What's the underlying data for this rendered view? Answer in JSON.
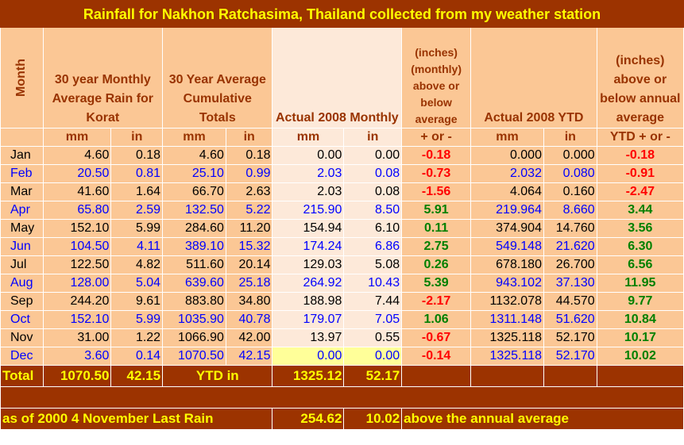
{
  "title": "Rainfall for Nakhon Ratchasima, Thailand collected from my weather station",
  "headers": {
    "month": "Month",
    "avg_monthly": "30 year Monthly Average Rain for Korat",
    "avg_cumulative": "30 Year Average Cumulative Totals",
    "actual_monthly": "Actual 2008 Monthly",
    "monthly_diff": "(inches) (monthly) above or below average",
    "actual_ytd": "Actual 2008 YTD",
    "ytd_diff": "(inches) above or below annual average"
  },
  "units": {
    "mm": "mm",
    "in": "in",
    "plus_minus": "+ or -",
    "ytd_plus_minus": "YTD + or -"
  },
  "rows": [
    {
      "month": "Jan",
      "avg_mm": "4.60",
      "avg_in": "0.18",
      "cum_mm": "4.60",
      "cum_in": "0.18",
      "act_mm": "0.00",
      "act_in": "0.00",
      "diff": "-0.18",
      "ytd_mm": "0.000",
      "ytd_in": "0.000",
      "ytd_diff": "-0.18"
    },
    {
      "month": "Feb",
      "avg_mm": "20.50",
      "avg_in": "0.81",
      "cum_mm": "25.10",
      "cum_in": "0.99",
      "act_mm": "2.03",
      "act_in": "0.08",
      "diff": "-0.73",
      "ytd_mm": "2.032",
      "ytd_in": "0.080",
      "ytd_diff": "-0.91"
    },
    {
      "month": "Mar",
      "avg_mm": "41.60",
      "avg_in": "1.64",
      "cum_mm": "66.70",
      "cum_in": "2.63",
      "act_mm": "2.03",
      "act_in": "0.08",
      "diff": "-1.56",
      "ytd_mm": "4.064",
      "ytd_in": "0.160",
      "ytd_diff": "-2.47"
    },
    {
      "month": "Apr",
      "avg_mm": "65.80",
      "avg_in": "2.59",
      "cum_mm": "132.50",
      "cum_in": "5.22",
      "act_mm": "215.90",
      "act_in": "8.50",
      "diff": "5.91",
      "ytd_mm": "219.964",
      "ytd_in": "8.660",
      "ytd_diff": "3.44"
    },
    {
      "month": "May",
      "avg_mm": "152.10",
      "avg_in": "5.99",
      "cum_mm": "284.60",
      "cum_in": "11.20",
      "act_mm": "154.94",
      "act_in": "6.10",
      "diff": "0.11",
      "ytd_mm": "374.904",
      "ytd_in": "14.760",
      "ytd_diff": "3.56"
    },
    {
      "month": "Jun",
      "avg_mm": "104.50",
      "avg_in": "4.11",
      "cum_mm": "389.10",
      "cum_in": "15.32",
      "act_mm": "174.24",
      "act_in": "6.86",
      "diff": "2.75",
      "ytd_mm": "549.148",
      "ytd_in": "21.620",
      "ytd_diff": "6.30"
    },
    {
      "month": "Jul",
      "avg_mm": "122.50",
      "avg_in": "4.82",
      "cum_mm": "511.60",
      "cum_in": "20.14",
      "act_mm": "129.03",
      "act_in": "5.08",
      "diff": "0.26",
      "ytd_mm": "678.180",
      "ytd_in": "26.700",
      "ytd_diff": "6.56"
    },
    {
      "month": "Aug",
      "avg_mm": "128.00",
      "avg_in": "5.04",
      "cum_mm": "639.60",
      "cum_in": "25.18",
      "act_mm": "264.92",
      "act_in": "10.43",
      "diff": "5.39",
      "ytd_mm": "943.102",
      "ytd_in": "37.130",
      "ytd_diff": "11.95"
    },
    {
      "month": "Sep",
      "avg_mm": "244.20",
      "avg_in": "9.61",
      "cum_mm": "883.80",
      "cum_in": "34.80",
      "act_mm": "188.98",
      "act_in": "7.44",
      "diff": "-2.17",
      "ytd_mm": "1132.078",
      "ytd_in": "44.570",
      "ytd_diff": "9.77"
    },
    {
      "month": "Oct",
      "avg_mm": "152.10",
      "avg_in": "5.99",
      "cum_mm": "1035.90",
      "cum_in": "40.78",
      "act_mm": "179.07",
      "act_in": "7.05",
      "diff": "1.06",
      "ytd_mm": "1311.148",
      "ytd_in": "51.620",
      "ytd_diff": "10.84"
    },
    {
      "month": "Nov",
      "avg_mm": "31.00",
      "avg_in": "1.22",
      "cum_mm": "1066.90",
      "cum_in": "42.00",
      "act_mm": "13.97",
      "act_in": "0.55",
      "diff": "-0.67",
      "ytd_mm": "1325.118",
      "ytd_in": "52.170",
      "ytd_diff": "10.17"
    },
    {
      "month": "Dec",
      "avg_mm": "3.60",
      "avg_in": "0.14",
      "cum_mm": "1070.50",
      "cum_in": "42.15",
      "act_mm": "0.00",
      "act_in": "0.00",
      "diff": "-0.14",
      "ytd_mm": "1325.118",
      "ytd_in": "52.170",
      "ytd_diff": "10.02"
    }
  ],
  "total": {
    "label": "Total",
    "avg_mm": "1070.50",
    "avg_in": "42.15",
    "ytd_label": "YTD in",
    "act_mm": "1325.12",
    "act_in": "52.17"
  },
  "footer": {
    "label": "as of 2000 4 November Last Rain",
    "mm": "254.62",
    "in": "10.02",
    "note": "above the annual average"
  },
  "colors": {
    "title_bg": "#9c3300",
    "title_text": "#ffff00",
    "header_bg": "#fbc795",
    "header_text": "#993300",
    "actual_bg": "#fde9d9",
    "negative": "#ff0000",
    "positive": "#008000",
    "highlight": "#ffff99"
  }
}
